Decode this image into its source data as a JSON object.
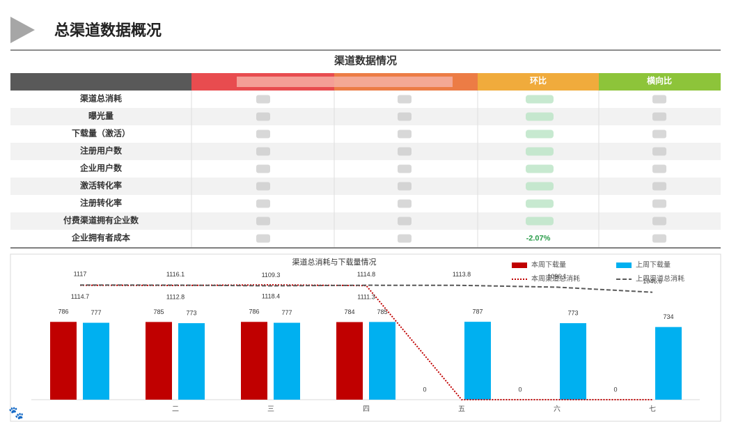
{
  "header": {
    "title": "总渠道数据概况"
  },
  "table": {
    "title": "渠道数据情况",
    "columns": [
      "环比",
      "横向比"
    ],
    "rows": [
      {
        "label": "渠道总消耗"
      },
      {
        "label": "曝光量"
      },
      {
        "label": "下载量（激活）"
      },
      {
        "label": "注册用户数"
      },
      {
        "label": "企业用户数"
      },
      {
        "label": "激活转化率"
      },
      {
        "label": "注册转化率"
      },
      {
        "label": "付费渠道拥有企业数"
      },
      {
        "label": "企业拥有者成本",
        "ring": "-2.07%"
      }
    ]
  },
  "chart_data": {
    "type": "bar",
    "title": "渠道总消耗与下载量情况",
    "categories": [
      null,
      "二",
      "三",
      "四",
      "五",
      "六",
      "七"
    ],
    "ylim": [
      0,
      1400
    ],
    "y2lim": [
      0,
      1350
    ],
    "legend": "top-right",
    "series": [
      {
        "name": "本周下载量",
        "color": "#c00000",
        "values": [
          786,
          785,
          786,
          784,
          0,
          0,
          0
        ]
      },
      {
        "name": "上周下载量",
        "color": "#00b0f0",
        "values": [
          777,
          773,
          777,
          785,
          787,
          773,
          734
        ]
      },
      {
        "name": "本周渠道总消耗",
        "type": "line",
        "dash": "dotted",
        "axis": "y2",
        "color": "#c00000",
        "values": [
          1114.7,
          1112.8,
          1118.4,
          1111.3,
          0,
          0,
          0
        ]
      },
      {
        "name": "上周渠道总消耗",
        "type": "line",
        "dash": "dashed",
        "axis": "y2",
        "color": "#595959",
        "values": [
          1117,
          1116.1,
          1109.3,
          1114.8,
          1113.8,
          1096.1,
          1046.6
        ]
      }
    ]
  }
}
